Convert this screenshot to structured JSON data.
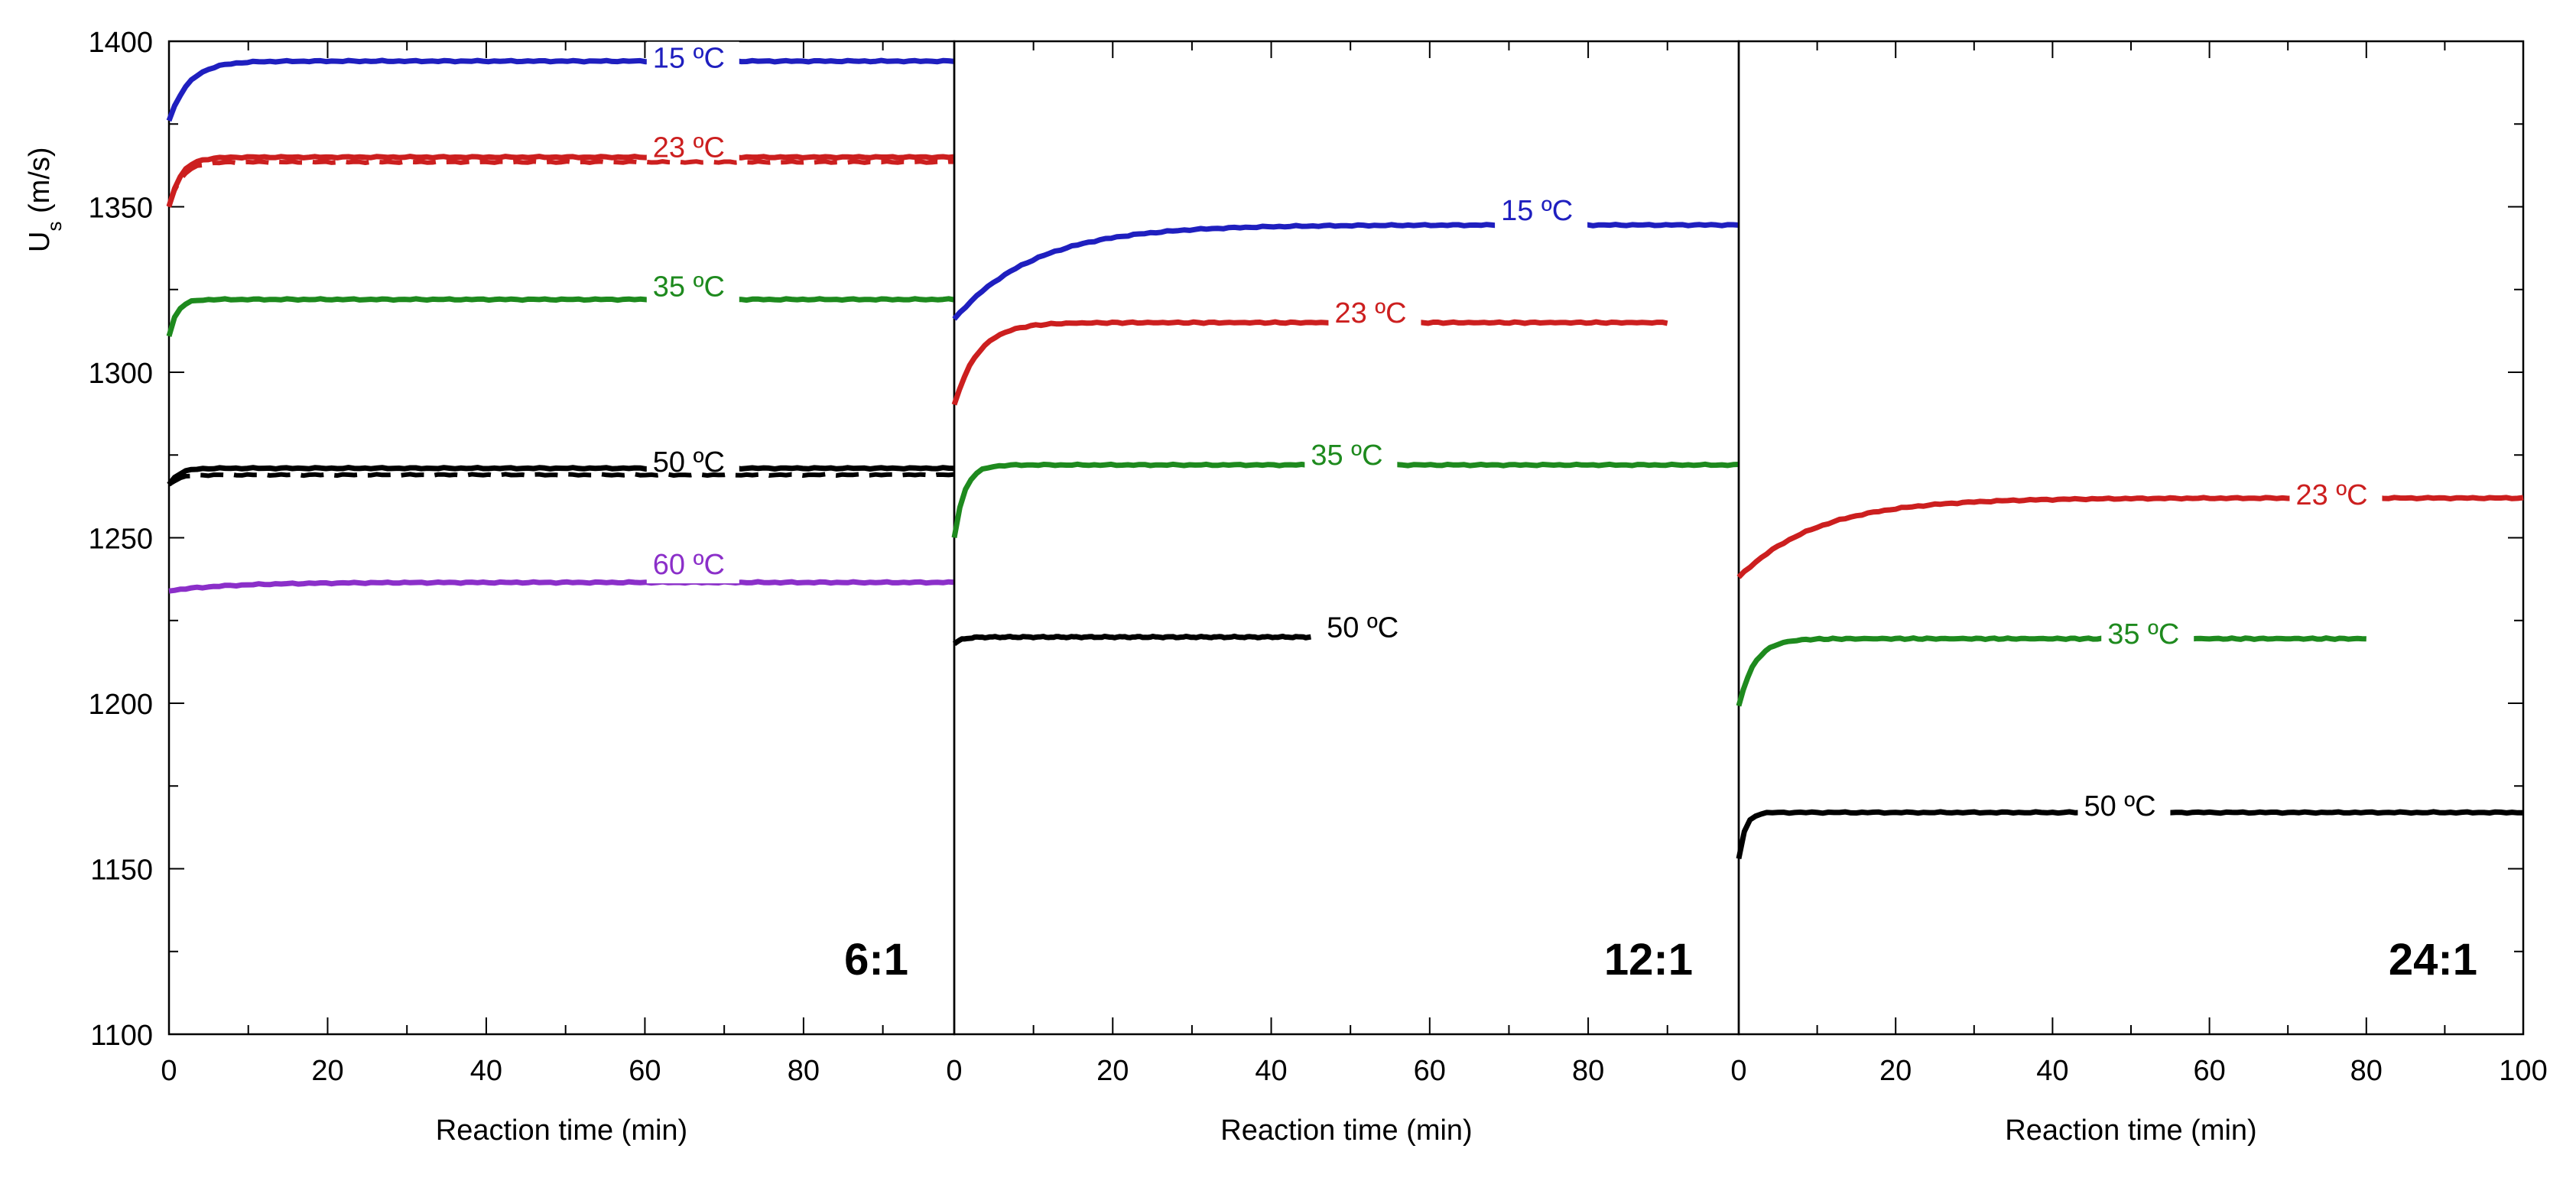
{
  "chart_data": {
    "type": "line",
    "ylabel": "U",
    "ylabel_sub": "s",
    "ylabel_unit": "(m/s)",
    "ylim": [
      1100,
      1400
    ],
    "yticks": [
      "1100",
      "1150",
      "1200",
      "1250",
      "1300",
      "1350",
      "1400"
    ],
    "colors": {
      "15": "#1f1fbf",
      "23": "#cc1f1f",
      "35": "#1e8a1e",
      "50": "#000000",
      "60": "#8b2fc9"
    },
    "panels": [
      {
        "name": "6:1",
        "xlabel": "Reaction time (min)",
        "xlim": [
          0,
          99
        ],
        "xticks": [
          "0",
          "20",
          "40",
          "60",
          "80"
        ],
        "series": [
          {
            "name": "15 ºC",
            "color_key": "15",
            "end": 99,
            "y0": 1376,
            "yf": 1394,
            "tau": 2.5,
            "label_x": 61,
            "label_y": 1392
          },
          {
            "name": "23 ºC",
            "color_key": "23",
            "end": 99,
            "y0": 1350,
            "yf": 1365,
            "tau": 1.5,
            "label_x": 61,
            "label_y": 1365
          },
          {
            "name": "23 ºC dashed",
            "color_key": "23",
            "end": 99,
            "y0": 1350,
            "yf": 1363.5,
            "tau": 1.5,
            "dashed": true
          },
          {
            "name": "35 ºC",
            "color_key": "35",
            "end": 99,
            "y0": 1311,
            "yf": 1322,
            "tau": 1.0,
            "label_x": 61,
            "label_y": 1323
          },
          {
            "name": "50 ºC",
            "color_key": "50",
            "end": 99,
            "y0": 1266,
            "yf": 1271,
            "tau": 1.2,
            "label_x": 61,
            "label_y": 1270
          },
          {
            "name": "50 ºC dashed",
            "color_key": "50",
            "end": 99,
            "y0": 1266,
            "yf": 1269,
            "tau": 1.2,
            "dashed": true
          },
          {
            "name": "60 ºC",
            "color_key": "60",
            "end": 99,
            "y0": 1234,
            "yf": 1236.5,
            "tau": 8,
            "label_x": 61,
            "label_y": 1239
          }
        ]
      },
      {
        "name": "12:1",
        "xlabel": "Reaction time (min)",
        "xlim": [
          0,
          99
        ],
        "xticks": [
          "0",
          "20",
          "40",
          "60",
          "80"
        ],
        "series": [
          {
            "name": "15 ºC",
            "color_key": "15",
            "end": 99,
            "y0": 1316,
            "yf": 1344.5,
            "tau": 10,
            "label_x": 69,
            "label_y": 1346
          },
          {
            "name": "23 ºC",
            "color_key": "23",
            "end": 90,
            "y0": 1290,
            "yf": 1315,
            "tau": 3,
            "label_x": 48,
            "label_y": 1315
          },
          {
            "name": "35 ºC",
            "color_key": "35",
            "end": 99,
            "y0": 1250,
            "yf": 1272,
            "tau": 1.3,
            "label_x": 45,
            "label_y": 1272
          },
          {
            "name": "50 ºC",
            "color_key": "50",
            "end": 45,
            "y0": 1218,
            "yf": 1220,
            "tau": 1,
            "label_x": 47,
            "label_y": 1220
          }
        ]
      },
      {
        "name": "24:1",
        "xlabel": "Reaction time (min)",
        "xlim": [
          0,
          100
        ],
        "xticks": [
          "0",
          "20",
          "40",
          "60",
          "80",
          "100"
        ],
        "series": [
          {
            "name": "23 ºC",
            "color_key": "23",
            "end": 100,
            "y0": 1238,
            "yf": 1262,
            "tau": 10,
            "label_x": 71,
            "label_y": 1260
          },
          {
            "name": "35 ºC",
            "color_key": "35",
            "end": 80,
            "y0": 1199,
            "yf": 1219.5,
            "tau": 2,
            "label_x": 47,
            "label_y": 1218
          },
          {
            "name": "50 ºC",
            "color_key": "50",
            "end": 100,
            "y0": 1153,
            "yf": 1167,
            "tau": 0.8,
            "label_x": 44,
            "label_y": 1166
          }
        ]
      }
    ]
  }
}
